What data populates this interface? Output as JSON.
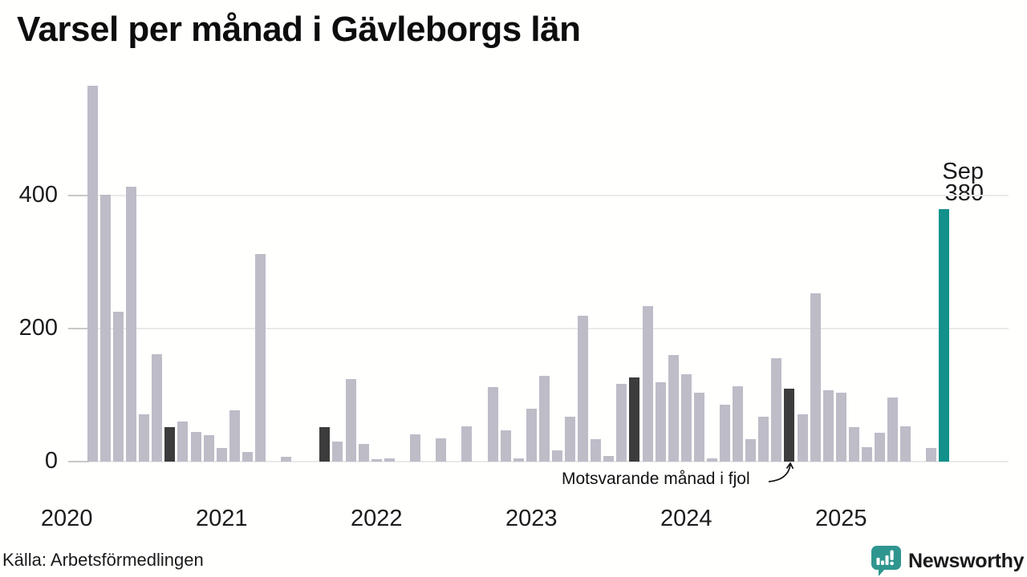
{
  "header": {
    "title": "Varsel per månad i Gävleborgs län"
  },
  "chart_data": {
    "type": "bar",
    "title": "Varsel per månad i Gävleborgs län",
    "xlabel": "",
    "ylabel": "",
    "y_ticks": [
      0,
      200,
      400
    ],
    "ylim": [
      0,
      570
    ],
    "grid": "horizontal",
    "legend_position": "none",
    "year_labels": [
      "2020",
      "2021",
      "2022",
      "2023",
      "2024",
      "2025"
    ],
    "months": [
      "2020-01",
      "2020-02",
      "2020-03",
      "2020-04",
      "2020-05",
      "2020-06",
      "2020-07",
      "2020-08",
      "2020-09",
      "2020-10",
      "2020-11",
      "2020-12",
      "2021-01",
      "2021-02",
      "2021-03",
      "2021-04",
      "2021-05",
      "2021-06",
      "2021-07",
      "2021-08",
      "2021-09",
      "2021-10",
      "2021-11",
      "2021-12",
      "2022-01",
      "2022-02",
      "2022-03",
      "2022-04",
      "2022-05",
      "2022-06",
      "2022-07",
      "2022-08",
      "2022-09",
      "2022-10",
      "2022-11",
      "2022-12",
      "2023-01",
      "2023-02",
      "2023-03",
      "2023-04",
      "2023-05",
      "2023-06",
      "2023-07",
      "2023-08",
      "2023-09",
      "2023-10",
      "2023-11",
      "2023-12",
      "2024-01",
      "2024-02",
      "2024-03",
      "2024-04",
      "2024-05",
      "2024-06",
      "2024-07",
      "2024-08",
      "2024-09",
      "2024-10",
      "2024-11",
      "2024-12",
      "2025-01",
      "2025-02",
      "2025-03",
      "2025-04",
      "2025-05",
      "2025-06",
      "2025-07",
      "2025-08",
      "2025-09"
    ],
    "values": [
      0,
      0,
      565,
      401,
      226,
      413,
      71,
      161,
      52,
      60,
      45,
      40,
      20,
      77,
      14,
      312,
      0,
      7,
      0,
      0,
      52,
      30,
      124,
      27,
      4,
      5,
      0,
      41,
      0,
      35,
      0,
      53,
      0,
      112,
      47,
      5,
      80,
      129,
      17,
      67,
      220,
      34,
      9,
      117,
      127,
      234,
      119,
      160,
      131,
      104,
      5,
      86,
      113,
      34,
      67,
      156,
      110,
      71,
      253,
      107,
      104,
      52,
      22,
      44,
      97,
      53,
      0,
      21,
      380
    ],
    "fjol_months": [
      "2020-09",
      "2021-09",
      "2022-09",
      "2023-09",
      "2024-09"
    ],
    "current_month": "2025-09",
    "current_point_label": {
      "month": "Sep",
      "value": 380
    },
    "annotation": {
      "text": "Motsvarande månad i fjol",
      "points_to_month": "2024-09"
    }
  },
  "colors": {
    "bar_default": "#bdbcc7",
    "bar_fjol": "#3c3c3c",
    "bar_current": "#12908a",
    "gridline": "#eaeae8",
    "logo_teal": "#2e8f8c"
  },
  "footer": {
    "source": "Källa: Arbetsförmedlingen",
    "logo_text": "Newsworthy"
  }
}
